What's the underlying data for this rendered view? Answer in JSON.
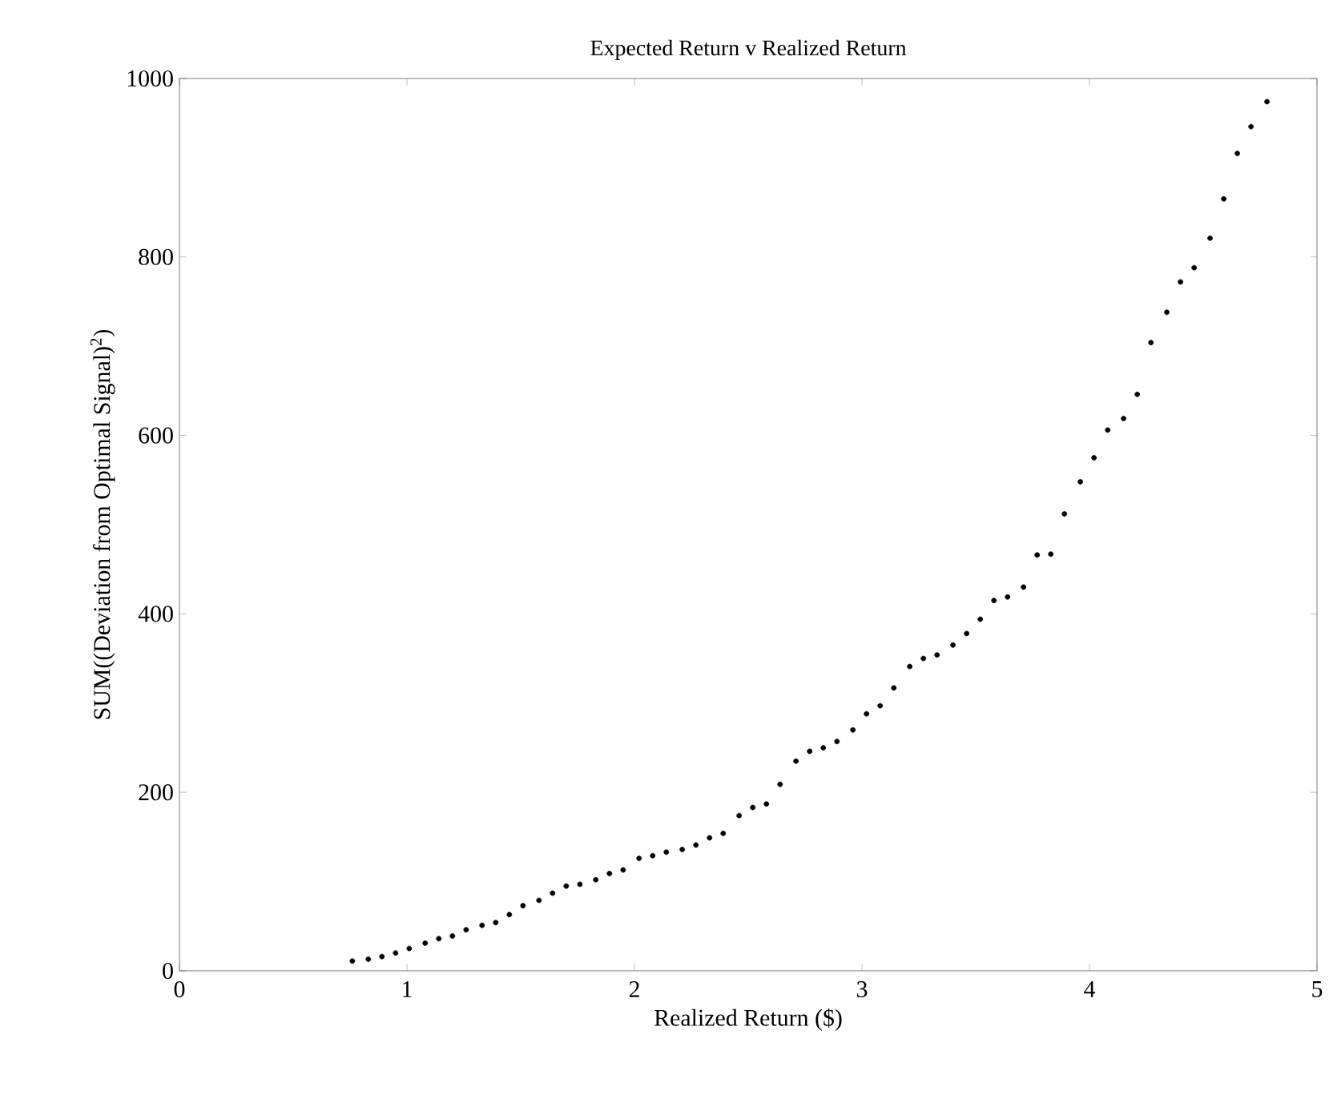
{
  "chart_data": {
    "type": "scatter",
    "title": "Expected Return v Realized Return",
    "xlabel": "Realized Return ($)",
    "ylabel": "SUM((Deviation from Optimal Signal)$^{2}$)",
    "x": [
      0.76,
      0.83,
      0.89,
      0.95,
      1.01,
      1.08,
      1.14,
      1.2,
      1.26,
      1.33,
      1.39,
      1.45,
      1.51,
      1.58,
      1.64,
      1.7,
      1.76,
      1.83,
      1.89,
      1.95,
      2.02,
      2.08,
      2.14,
      2.21,
      2.27,
      2.33,
      2.39,
      2.46,
      2.52,
      2.58,
      2.64,
      2.71,
      2.77,
      2.83,
      2.89,
      2.96,
      3.02,
      3.08,
      3.14,
      3.21,
      3.27,
      3.33,
      3.4,
      3.46,
      3.52,
      3.58,
      3.64,
      3.71,
      3.77,
      3.83,
      3.89,
      3.96,
      4.02,
      4.08,
      4.15,
      4.21,
      4.27,
      4.34,
      4.4,
      4.46,
      4.53,
      4.59,
      4.65,
      4.71,
      4.78
    ],
    "series": [
      {
        "color": "#000000",
        "values": [
          11,
          13,
          16,
          20,
          25,
          31,
          36,
          39,
          46,
          51,
          54,
          63,
          73,
          79,
          87,
          95,
          97,
          102,
          109,
          113,
          126,
          129,
          133,
          136,
          141,
          149,
          154,
          174,
          183,
          187,
          209,
          235,
          246,
          250,
          257,
          270,
          288,
          297,
          317,
          341,
          350,
          354,
          365,
          378,
          394,
          415,
          419,
          430,
          466,
          467,
          512,
          548,
          575,
          606,
          619,
          646,
          704,
          738,
          772,
          788,
          821,
          865,
          916,
          946,
          974
        ]
      }
    ],
    "marker": "circle",
    "xlim": [
      0,
      5
    ],
    "ylim": [
      0,
      1000
    ],
    "xticks": [
      0,
      1,
      2,
      3,
      4,
      5
    ],
    "yticks": [
      0,
      200,
      400,
      600,
      800,
      1000
    ],
    "grid": false
  }
}
